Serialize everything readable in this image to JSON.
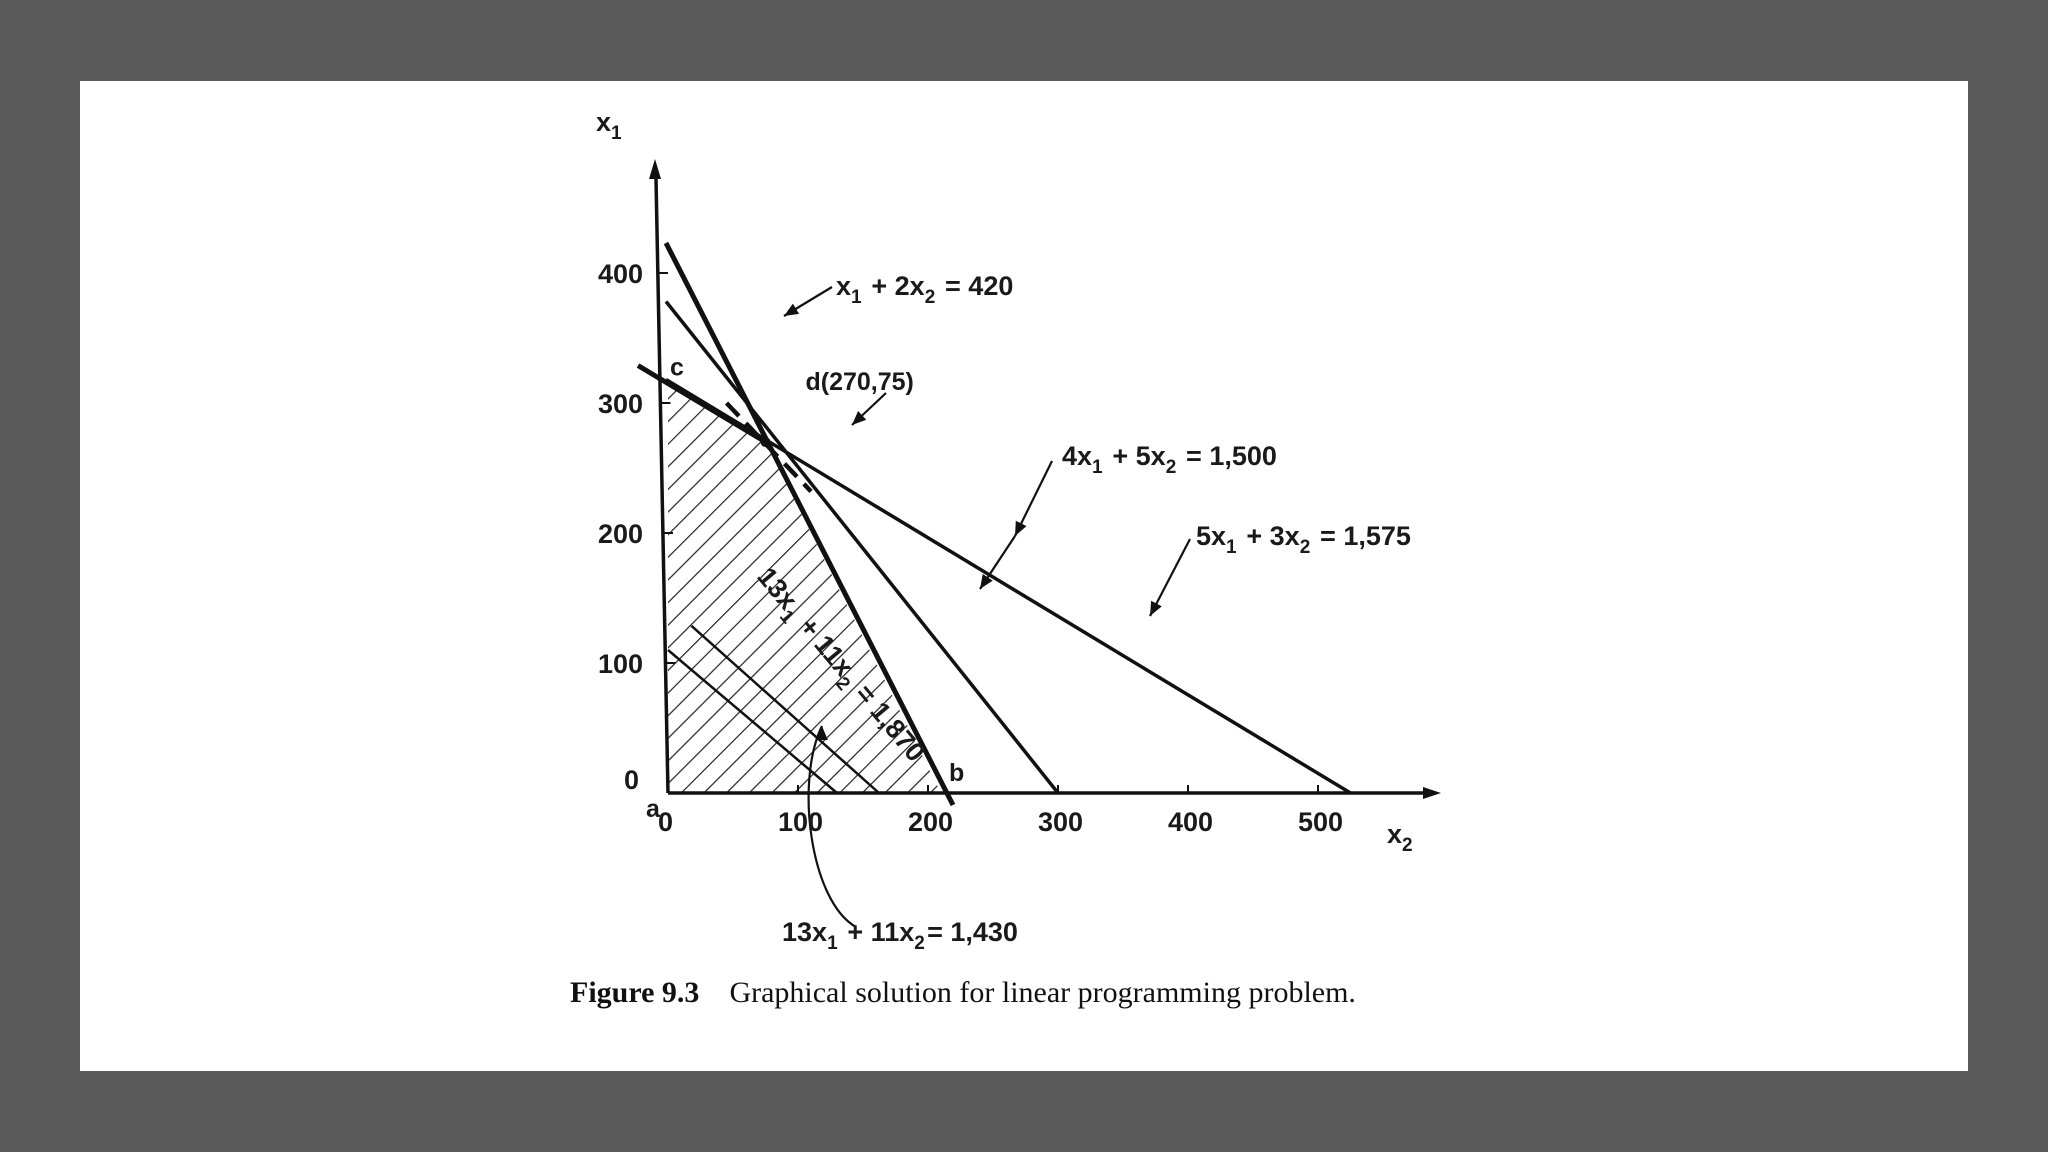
{
  "chart_data": {
    "type": "line",
    "title": "",
    "xlabel": "x",
    "xlabel_sub": "2",
    "ylabel": "x",
    "ylabel_sub": "1",
    "xlim": [
      0,
      550
    ],
    "ylim": [
      0,
      480
    ],
    "x_ticks": [
      "0",
      "100",
      "200",
      "300",
      "400",
      "500"
    ],
    "y_ticks": [
      "0",
      "100",
      "200",
      "300",
      "400"
    ],
    "constraints": [
      {
        "label": "x₁ + 2x₂ = 420",
        "a1": 1,
        "a2": 2,
        "rhs": 420,
        "x_intercept": 210,
        "y_intercept": 420
      },
      {
        "label": "4x₁ + 5x₂ = 1,500",
        "a1": 4,
        "a2": 5,
        "rhs": 1500,
        "x_intercept": 300,
        "y_intercept": 375
      },
      {
        "label": "5x₁ + 3x₂ = 1,575",
        "a1": 5,
        "a2": 3,
        "rhs": 1575,
        "x_intercept": 525,
        "y_intercept": 315
      }
    ],
    "objective_lines": [
      {
        "label": "13x₁ + 11x₂ = 1,870",
        "a1": 13,
        "a2": 11,
        "rhs": 1870
      },
      {
        "label": "13x₁ + 11x₂= 1,430",
        "a1": 13,
        "a2": 11,
        "rhs": 1430
      }
    ],
    "feasible_region": [
      [
        0,
        0
      ],
      [
        210,
        0
      ],
      [
        75,
        270
      ],
      [
        0,
        315
      ]
    ],
    "points": [
      {
        "label": "a",
        "x2": 0,
        "x1": 0
      },
      {
        "label": "b",
        "x2": 210,
        "x1": 0
      },
      {
        "label": "c",
        "x2": 0,
        "x1": 315
      },
      {
        "label": "d(270,75)",
        "x2": 75,
        "x1": 270
      }
    ]
  },
  "caption": {
    "figure_number": "Figure 9.3",
    "text": "Graphical solution for linear programming problem."
  }
}
